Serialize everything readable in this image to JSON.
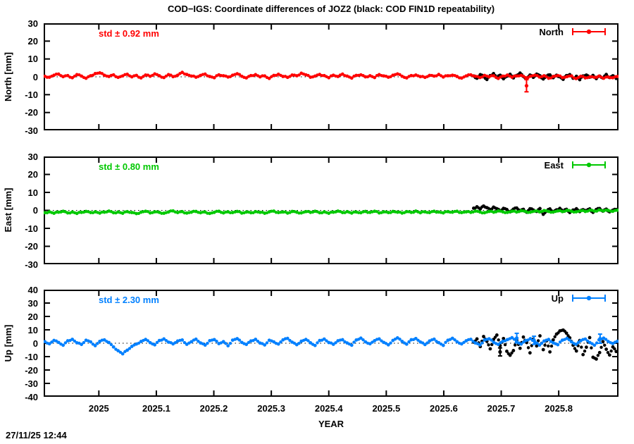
{
  "title": "COD−IGS: Coordinate differences of JOZ2 (black: COD FIN1D repeatability)",
  "timestamp": "27/11/25 12:44",
  "x_axis": {
    "label": "YEAR",
    "ticks": [
      {
        "value": 2025.0,
        "label": "2025"
      },
      {
        "value": 2025.1,
        "label": "2025.1"
      },
      {
        "value": 2025.2,
        "label": "2025.2"
      },
      {
        "value": 2025.3,
        "label": "2025.3"
      },
      {
        "value": 2025.4,
        "label": "2025.4"
      },
      {
        "value": 2025.5,
        "label": "2025.5"
      },
      {
        "value": 2025.6,
        "label": "2025.6"
      },
      {
        "value": 2025.7,
        "label": "2025.7"
      },
      {
        "value": 2025.8,
        "label": "2025.8"
      }
    ]
  },
  "colors": {
    "north": "#ff0000",
    "east": "#00c800",
    "up": "#0080ff",
    "repeatability": "#000000"
  },
  "chart_data": [
    {
      "type": "scatter",
      "panel": "North",
      "ylabel": "North [mm]",
      "ylim": [
        -30,
        30
      ],
      "yticks": [
        30,
        20,
        10,
        0,
        -10,
        -20,
        -30
      ],
      "xlim": [
        2024.904,
        2025.904
      ],
      "xlabel": "YEAR",
      "std_label": "std ± 0.92 mm",
      "legend_label": "North",
      "legend_position": "top-right",
      "grid": false,
      "zero_line": "dotted",
      "series": [
        {
          "name": "COD FIN1D repeatability",
          "color": "#000000",
          "x_start": 2025.652,
          "x_end": 2025.9,
          "y": [
            0.5,
            -0.8,
            1.2,
            0.1,
            -1.5,
            0.7,
            1.8,
            -0.4,
            0.9,
            -1.1,
            0.3,
            1.4,
            -0.6,
            0.8,
            2.1,
            0.2,
            -0.9,
            1.0,
            -0.3,
            1.5,
            0.6,
            -1.2,
            0.4,
            1.1,
            -0.5,
            0.9,
            0.0,
            -1.4,
            0.7,
            1.2,
            -0.8,
            0.3,
            -1.6,
            0.5,
            1.0,
            -0.2,
            0.8,
            -1.0,
            0.4,
            -0.7,
            1.3,
            -0.4,
            0.6,
            -0.9
          ],
          "errorbars": []
        },
        {
          "name": "COD−IGS difference",
          "color": "#ff0000",
          "x_start": 2024.906,
          "x_end": 2025.902,
          "y": [
            0.3,
            -0.2,
            0.9,
            1.5,
            0.1,
            0.7,
            -0.5,
            1.2,
            0.4,
            -0.8,
            0.6,
            1.8,
            2.2,
            0.9,
            0.2,
            1.1,
            -0.3,
            0.5,
            1.4,
            0.0,
            0.8,
            -0.6,
            1.0,
            0.3,
            1.6,
            0.6,
            -0.4,
            1.2,
            0.1,
            0.9,
            2.5,
            1.3,
            0.4,
            -0.2,
            0.8,
            1.5,
            0.2,
            -0.5,
            1.1,
            0.6,
            -0.1,
            0.9,
            1.7,
            0.3,
            -0.6,
            0.7,
            1.2,
            0.0,
            0.5,
            -0.9,
            0.8,
            1.4,
            0.2,
            -0.3,
            1.0,
            0.6,
            2.0,
            1.1,
            -0.2,
            0.4,
            1.3,
            0.7,
            -0.5,
            0.9,
            0.2,
            1.5,
            0.4,
            -0.7,
            0.8,
            1.1,
            0.0,
            0.6,
            -0.4,
            1.2,
            0.5,
            -0.2,
            0.9,
            1.6,
            0.3,
            -0.6,
            0.7,
            1.0,
            0.1,
            -0.3,
            0.8,
            0.4,
            1.3,
            -0.1,
            0.6,
            0.9,
            0.2,
            -0.7,
            0.5,
            1.1,
            0.3,
            -0.4,
            0.8,
            0.0,
            0.6,
            -0.9,
            0.4,
            1.0,
            -0.2,
            0.5,
            0.8,
            -0.5,
            0.3,
            0.9,
            -0.1,
            0.6,
            -0.8,
            0.2,
            0.7,
            -0.4,
            0.1,
            0.5,
            -1.0,
            0.3,
            -0.6,
            0.0,
            -0.3,
            0.4,
            -0.8,
            -0.1,
            -0.5,
            0.2
          ],
          "errorbars": [
            {
              "x": 2025.744,
              "y": -5.0,
              "e": 3.4
            }
          ]
        }
      ]
    },
    {
      "type": "scatter",
      "panel": "East",
      "ylabel": "East [mm]",
      "ylim": [
        -30,
        30
      ],
      "yticks": [
        30,
        20,
        10,
        0,
        -10,
        -20,
        -30
      ],
      "xlim": [
        2024.904,
        2025.904
      ],
      "xlabel": "YEAR",
      "std_label": "std ± 0.80 mm",
      "legend_label": "East",
      "legend_position": "top-right",
      "grid": false,
      "zero_line": "dotted",
      "series": [
        {
          "name": "COD FIN1D repeatability",
          "color": "#000000",
          "x_start": 2025.652,
          "x_end": 2025.9,
          "y": [
            1.2,
            2.0,
            0.8,
            2.4,
            1.5,
            0.4,
            1.8,
            0.9,
            -0.3,
            1.1,
            0.5,
            -0.8,
            0.7,
            1.3,
            -0.2,
            0.6,
            -1.0,
            0.9,
            0.2,
            -0.6,
            1.0,
            -2.2,
            -0.4,
            0.8,
            -0.9,
            0.3,
            1.1,
            -0.5,
            0.6,
            -1.2,
            0.2,
            0.9,
            -0.7,
            0.4,
            -0.1,
            0.8,
            -1.1,
            0.5,
            1.0,
            -0.4,
            0.7,
            -0.8,
            0.1,
            0.5
          ],
          "errorbars": []
        },
        {
          "name": "COD−IGS difference",
          "color": "#00c800",
          "x_start": 2024.906,
          "x_end": 2025.902,
          "y": [
            -1.3,
            -0.8,
            -1.6,
            -1.0,
            -0.5,
            -1.4,
            -0.9,
            -1.7,
            -1.1,
            -0.6,
            -1.2,
            -0.8,
            -1.5,
            -1.0,
            -0.4,
            -1.3,
            -0.9,
            -1.6,
            -0.7,
            -1.2,
            -1.8,
            -1.0,
            -0.5,
            -1.4,
            -0.8,
            -1.1,
            -1.6,
            -0.9,
            -0.3,
            -1.2,
            -0.7,
            -1.5,
            -1.0,
            -0.6,
            -1.3,
            -0.9,
            -1.7,
            -1.1,
            -0.5,
            -1.4,
            -0.8,
            -1.2,
            -0.6,
            -1.5,
            -0.9,
            -1.3,
            -0.7,
            -1.1,
            -1.6,
            -0.8,
            -0.4,
            -1.2,
            -0.9,
            -1.5,
            -0.6,
            -1.0,
            -1.4,
            -0.7,
            -1.1,
            -0.5,
            -1.3,
            -0.8,
            -1.6,
            -1.0,
            -0.4,
            -1.2,
            -0.7,
            -1.5,
            -0.9,
            -1.3,
            -0.6,
            -1.1,
            -0.5,
            -1.4,
            -0.8,
            -1.2,
            -0.6,
            -1.0,
            -1.5,
            -0.7,
            -1.1,
            -0.4,
            -1.3,
            -0.8,
            -1.2,
            -0.5,
            -0.9,
            -1.4,
            -0.7,
            -1.0,
            -0.5,
            -1.2,
            -0.8,
            -1.1,
            -0.4,
            -0.9,
            -1.3,
            -0.6,
            -1.0,
            -0.3,
            -0.8,
            -1.1,
            -0.5,
            -0.9,
            -0.2,
            -0.7,
            -1.0,
            -0.4,
            -0.8,
            -0.1,
            -0.6,
            -0.9,
            -0.3,
            -0.7,
            0.0,
            -0.5,
            -0.8,
            -0.2,
            -0.6,
            0.1,
            -0.4,
            0.2,
            -0.3,
            0.0,
            -0.5,
            0.1
          ],
          "errorbars": []
        }
      ]
    },
    {
      "type": "scatter",
      "panel": "Up",
      "ylabel": "Up [mm]",
      "ylim": [
        -40,
        40
      ],
      "yticks": [
        40,
        30,
        20,
        10,
        0,
        -10,
        -20,
        -30,
        -40
      ],
      "xlim": [
        2024.904,
        2025.904
      ],
      "xlabel": "YEAR",
      "std_label": "std ± 2.30 mm",
      "legend_label": "Up",
      "legend_position": "top-right",
      "grid": false,
      "zero_line": "dotted",
      "series": [
        {
          "name": "COD FIN1D repeatability",
          "color": "#000000",
          "x_start": 2025.652,
          "x_end": 2025.9,
          "y": [
            0.8,
            3.2,
            -2.5,
            5.0,
            1.4,
            -4.2,
            2.8,
            6.1,
            -1.8,
            3.5,
            -6.0,
            -9.0,
            -5.5,
            2.2,
            -3.8,
            4.6,
            0.5,
            -7.2,
            3.0,
            -2.0,
            5.5,
            -4.8,
            1.8,
            -6.5,
            2.5,
            6.8,
            9.2,
            9.8,
            7.5,
            4.0,
            -1.5,
            -5.8,
            2.0,
            -8.5,
            -3.0,
            4.2,
            -10.5,
            -11.8,
            -7.0,
            1.2,
            -4.5,
            -8.8,
            -2.8,
            -6.2
          ],
          "errorbars": [
            {
              "x": 2025.698,
              "y": -6.5,
              "e": 3.0
            }
          ]
        },
        {
          "name": "COD−IGS difference",
          "color": "#0080ff",
          "x_start": 2024.906,
          "x_end": 2025.902,
          "y": [
            1.2,
            -0.4,
            2.1,
            0.6,
            -1.5,
            1.8,
            2.9,
            0.3,
            -0.9,
            2.2,
            1.0,
            -1.8,
            1.4,
            2.5,
            0.5,
            -2.8,
            -5.6,
            -7.9,
            -5.2,
            -2.4,
            -0.6,
            1.3,
            2.8,
            0.4,
            -1.2,
            2.0,
            3.2,
            0.8,
            -0.5,
            1.6,
            2.4,
            -0.8,
            1.1,
            3.0,
            0.2,
            -1.4,
            1.9,
            2.7,
            -0.3,
            1.2,
            -1.9,
            2.3,
            3.4,
            0.6,
            -0.9,
            1.7,
            2.9,
            0.1,
            -1.3,
            2.2,
            1.0,
            -0.6,
            2.5,
            3.6,
            0.8,
            -1.1,
            1.5,
            2.8,
            0.3,
            -1.7,
            2.0,
            3.1,
            0.5,
            -0.8,
            1.8,
            2.6,
            0.2,
            -1.5,
            2.4,
            3.8,
            1.0,
            -0.4,
            1.9,
            3.2,
            0.6,
            -1.2,
            2.1,
            4.0,
            1.4,
            -0.7,
            2.6,
            3.5,
            0.9,
            -1.0,
            1.7,
            3.0,
            0.4,
            -1.6,
            2.2,
            3.7,
            1.1,
            -0.5,
            1.8,
            2.9,
            0.2,
            -1.3,
            2.4,
            3.3,
            0.7,
            -0.9,
            1.5,
            2.7,
            4.1,
            1.2,
            -0.6,
            2.0,
            3.4,
            0.8,
            -1.4,
            1.6,
            2.8,
            0.3,
            -1.1,
            2.3,
            3.6,
            1.0,
            -0.8,
            1.9,
            3.1,
            0.5,
            -1.5,
            2.5,
            3.8,
            1.3,
            -0.2,
            1.4
          ],
          "errorbars": [
            {
              "x": 2025.727,
              "y": 3.8,
              "e": 3.6
            },
            {
              "x": 2025.757,
              "y": 2.2,
              "e": 3.0
            },
            {
              "x": 2025.872,
              "y": 3.4,
              "e": 3.4
            }
          ]
        }
      ]
    }
  ]
}
